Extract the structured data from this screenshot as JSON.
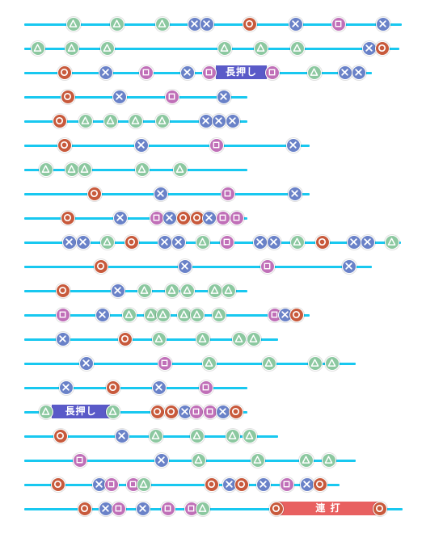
{
  "colors": {
    "track": "#18c8f0",
    "triangle": "#8cc8a0",
    "cross": "#6a82c8",
    "circle": "#c85a3c",
    "square": "#c070b8",
    "hold_bar": "#5a5ac8",
    "rapid_bar": "#e86060"
  },
  "icons": {
    "triangle": "triangle-icon",
    "cross": "cross-icon",
    "circle": "circle-icon",
    "square": "square-icon"
  },
  "labels": {
    "hold": "長押し",
    "rapid": "連 打"
  },
  "lanes": [
    {
      "notes": [
        "triangle",
        "triangle",
        "triangle",
        "cross",
        "cross",
        "circle",
        "cross",
        "square",
        "cross"
      ]
    },
    {
      "notes": [
        "triangle",
        "triangle",
        "triangle",
        "triangle",
        "triangle",
        "triangle",
        "cross",
        "circle"
      ]
    },
    {
      "notes": [
        "circle",
        "cross",
        "square",
        "cross",
        "square",
        "square",
        "triangle",
        "cross",
        "cross"
      ],
      "hold": {
        "label": "長押し"
      }
    },
    {
      "notes": [
        "circle",
        "cross",
        "square",
        "cross"
      ]
    },
    {
      "notes": [
        "circle",
        "triangle",
        "triangle",
        "triangle",
        "triangle",
        "cross",
        "cross",
        "cross"
      ]
    },
    {
      "notes": [
        "circle",
        "cross",
        "square",
        "cross"
      ]
    },
    {
      "notes": [
        "triangle",
        "triangle",
        "triangle",
        "triangle",
        "triangle"
      ]
    },
    {
      "notes": [
        "circle",
        "cross",
        "square",
        "cross"
      ]
    },
    {
      "notes": [
        "circle",
        "cross",
        "square",
        "cross",
        "circle",
        "circle",
        "cross",
        "square",
        "square"
      ]
    },
    {
      "notes": [
        "cross",
        "cross",
        "triangle",
        "circle",
        "cross",
        "cross",
        "triangle",
        "square",
        "cross",
        "cross",
        "triangle",
        "circle",
        "cross",
        "cross",
        "triangle"
      ]
    },
    {
      "notes": [
        "circle",
        "cross",
        "square",
        "cross"
      ]
    },
    {
      "notes": [
        "circle",
        "cross",
        "triangle",
        "triangle",
        "triangle",
        "triangle",
        "triangle"
      ]
    },
    {
      "notes": [
        "square",
        "cross",
        "triangle",
        "triangle",
        "triangle",
        "triangle",
        "triangle",
        "triangle",
        "square",
        "cross",
        "circle"
      ]
    },
    {
      "notes": [
        "cross",
        "circle",
        "triangle",
        "triangle",
        "triangle",
        "triangle"
      ]
    },
    {
      "notes": [
        "cross",
        "square",
        "triangle",
        "triangle",
        "triangle",
        "triangle"
      ]
    },
    {
      "notes": [
        "cross",
        "circle",
        "cross",
        "square"
      ]
    },
    {
      "notes": [
        "triangle",
        "triangle",
        "circle",
        "circle",
        "cross",
        "square",
        "square",
        "cross",
        "circle"
      ],
      "hold": {
        "label": "長押し"
      }
    },
    {
      "notes": [
        "circle",
        "cross",
        "triangle",
        "triangle",
        "triangle",
        "triangle"
      ]
    },
    {
      "notes": [
        "square",
        "cross",
        "triangle",
        "triangle",
        "triangle",
        "triangle"
      ]
    },
    {
      "notes": [
        "circle",
        "cross",
        "square",
        "square",
        "triangle",
        "circle",
        "cross",
        "circle",
        "cross",
        "square",
        "cross",
        "circle"
      ]
    },
    {
      "notes": [
        "circle",
        "cross",
        "square",
        "cross",
        "square",
        "square",
        "triangle",
        "circle",
        "circle"
      ],
      "rapid": {
        "label": "連 打"
      }
    }
  ]
}
